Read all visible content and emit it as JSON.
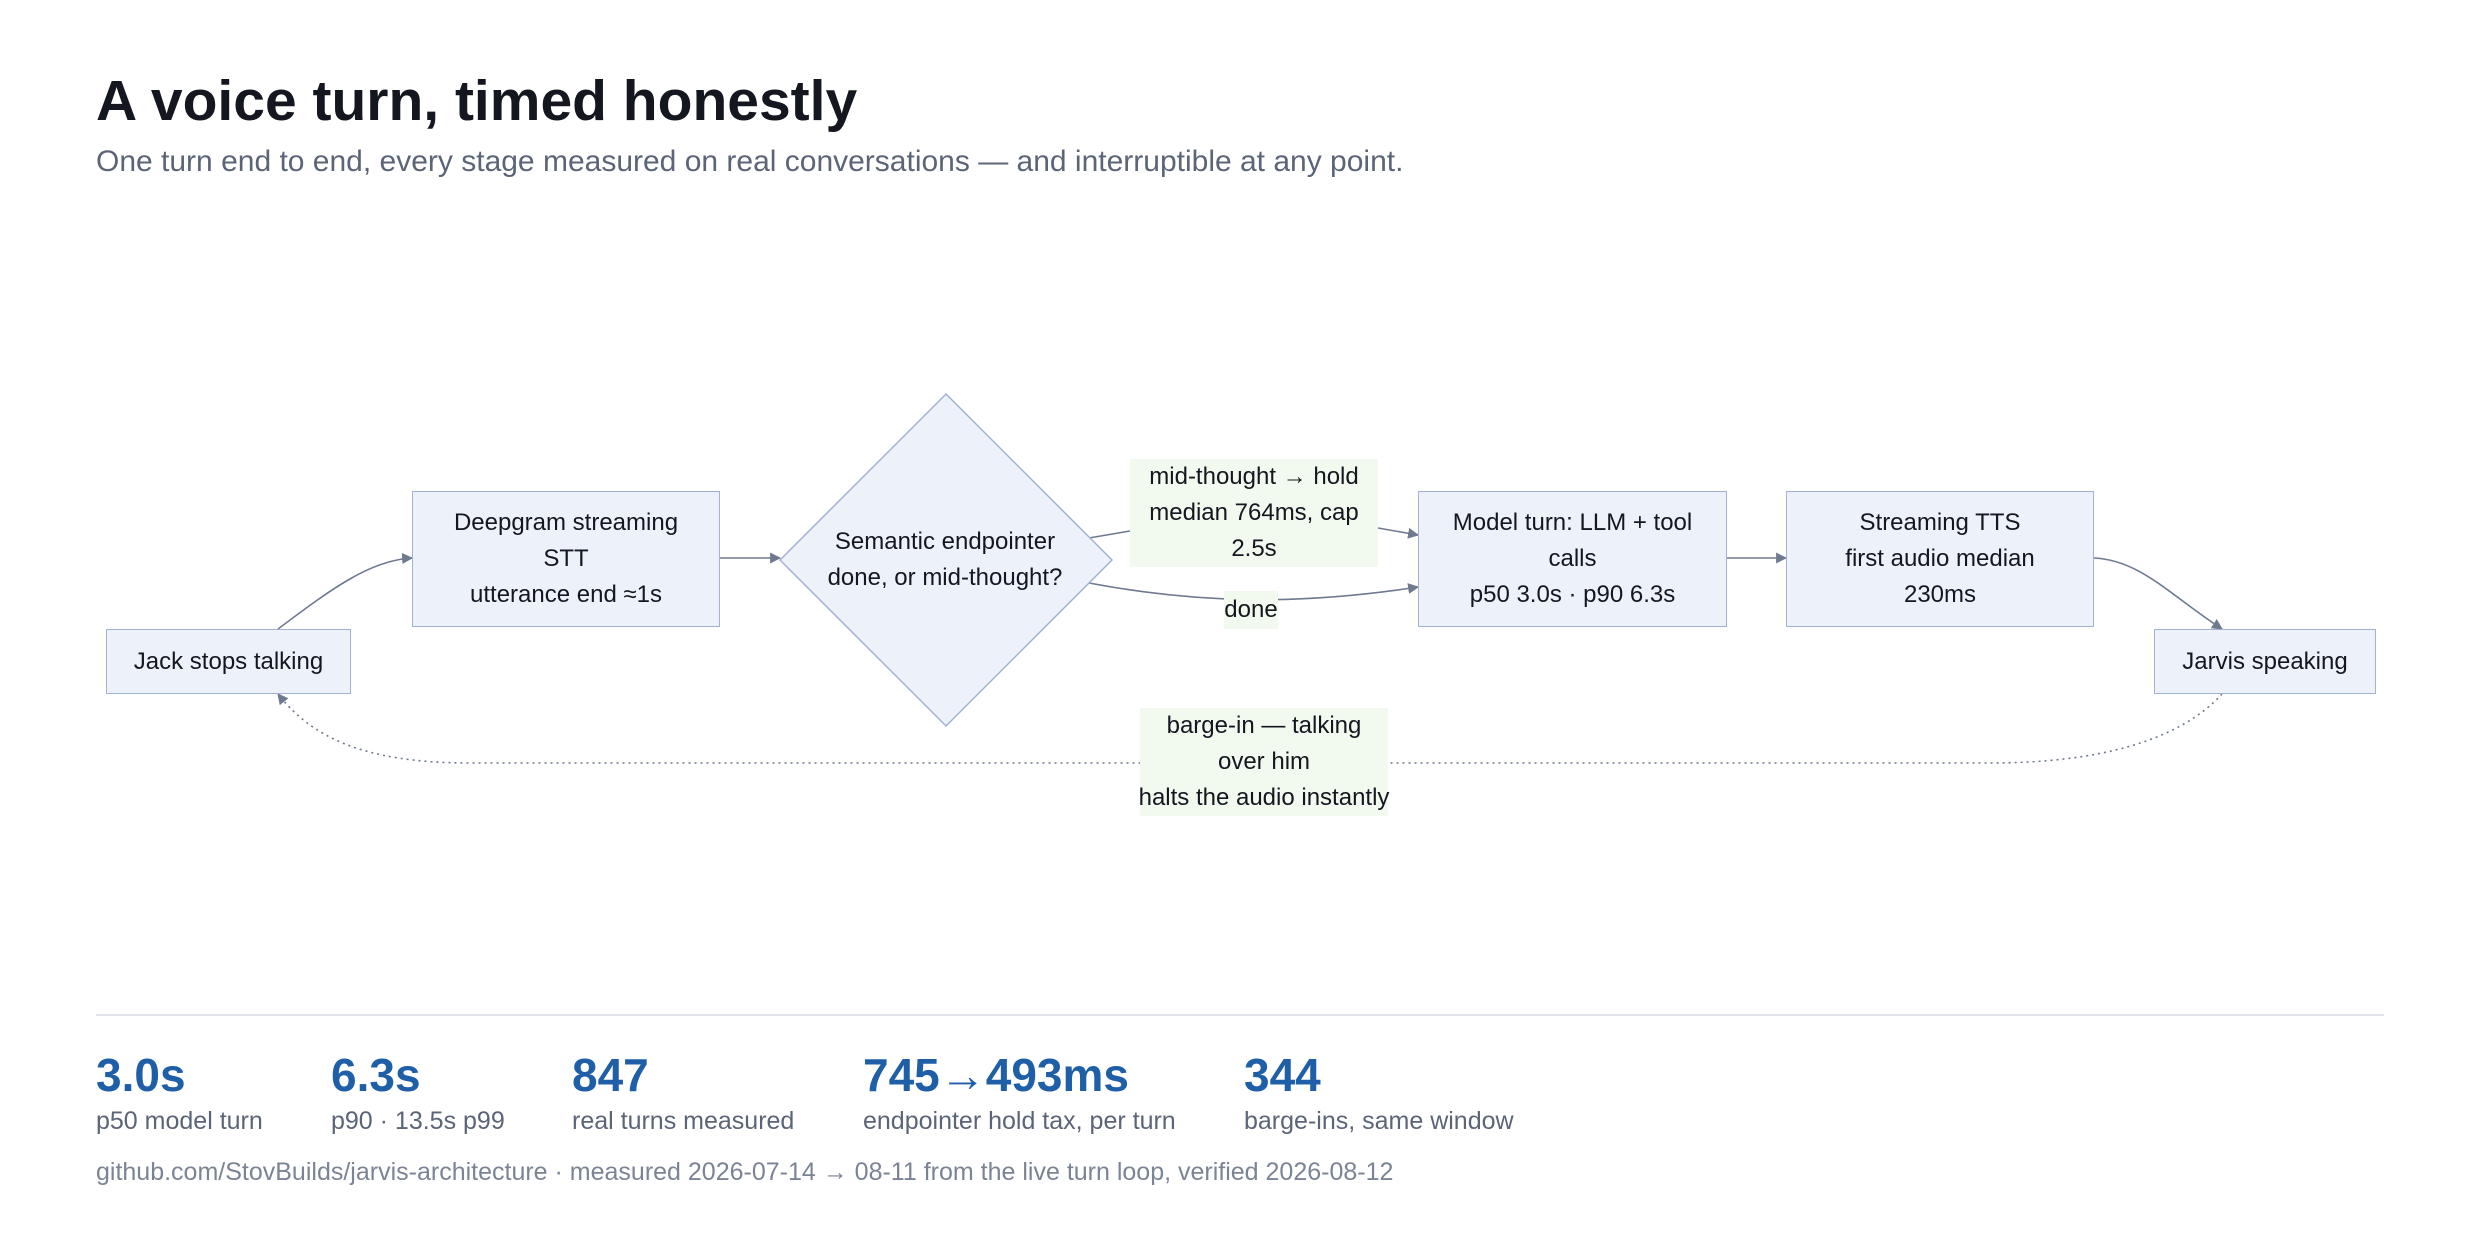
{
  "header": {
    "title": "A voice turn, timed honestly",
    "subtitle": "One turn end to end, every stage measured on real conversations — and interruptible at any point."
  },
  "diagram": {
    "nodes": {
      "start": {
        "lines": [
          "Jack stops talking"
        ]
      },
      "stt": {
        "lines": [
          "Deepgram streaming",
          "STT",
          "utterance end ≈1s"
        ]
      },
      "endpointer": {
        "lines": [
          "Semantic endpointer",
          "done, or mid-thought?"
        ]
      },
      "model": {
        "lines": [
          "Model turn: LLM + tool",
          "calls",
          "p50 3.0s · p90 6.3s"
        ]
      },
      "tts": {
        "lines": [
          "Streaming TTS",
          "first audio median",
          "230ms"
        ]
      },
      "end": {
        "lines": [
          "Jarvis speaking"
        ]
      }
    },
    "edge_labels": {
      "hold": {
        "lines": [
          "mid-thought → hold",
          "median 764ms, cap",
          "2.5s"
        ]
      },
      "done": {
        "lines": [
          "done"
        ]
      },
      "barge_in": {
        "lines": [
          "barge-in — talking",
          "over him",
          "halts the audio instantly"
        ]
      }
    },
    "colors": {
      "node_fill": "#edf1fa",
      "node_border": "#a3b2d2",
      "edge": "#6e7a90",
      "label_fill": "#f2f9ee"
    }
  },
  "stats": [
    {
      "value": "3.0s",
      "label": "p50 model turn"
    },
    {
      "value": "6.3s",
      "label": "p90 · 13.5s p99"
    },
    {
      "value": "847",
      "label": "real turns measured"
    },
    {
      "value": "745→493ms",
      "label": "endpointer hold tax, per turn"
    },
    {
      "value": "344",
      "label": "barge-ins, same window"
    }
  ],
  "footer": {
    "text": "github.com/StovBuilds/jarvis-architecture · measured 2026-07-14 → 08-11 from the live turn loop, verified 2026-08-12"
  }
}
